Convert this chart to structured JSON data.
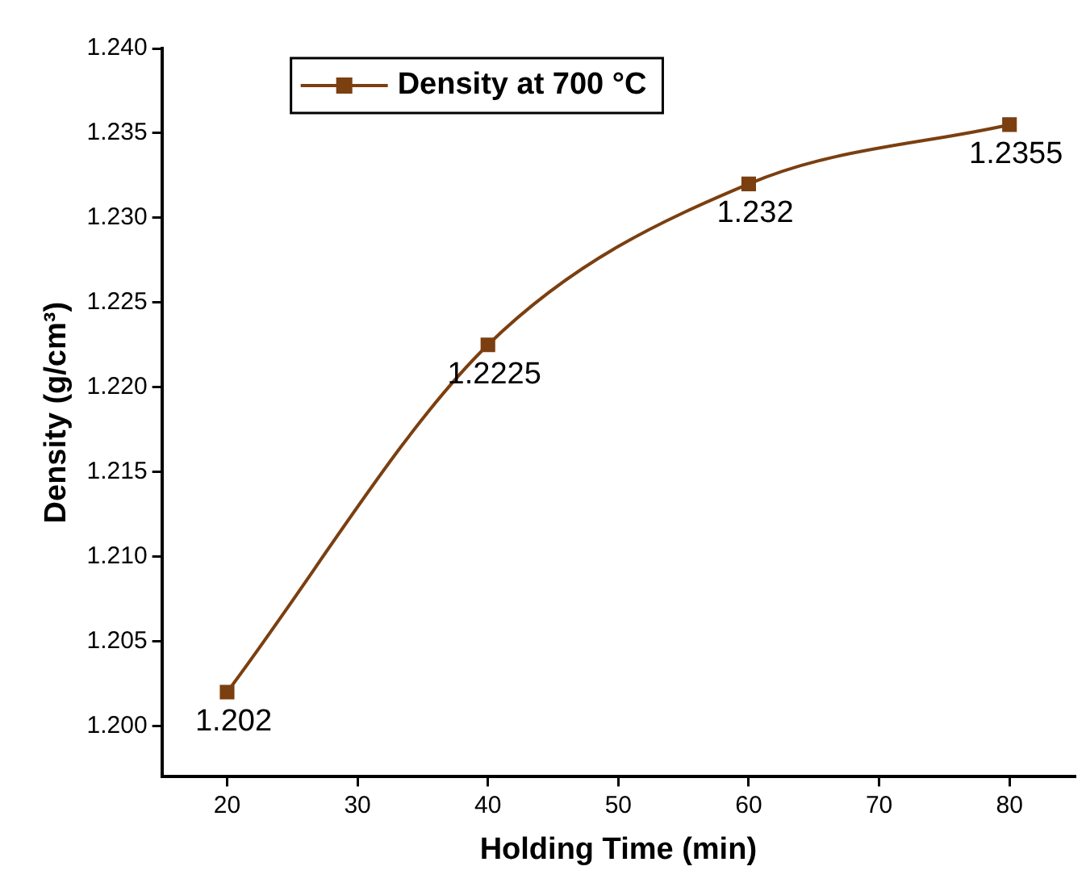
{
  "chart_data": {
    "type": "line",
    "xlabel": "Holding Time (min)",
    "ylabel": "Density (g/cm³)",
    "x": [
      20,
      40,
      60,
      80
    ],
    "series": [
      {
        "name": "Density at 700 °C",
        "color": "#7b3f10",
        "values": [
          1.202,
          1.2225,
          1.232,
          1.2355
        ]
      }
    ],
    "xlim": [
      15,
      85
    ],
    "xticks": [
      20,
      30,
      40,
      50,
      60,
      70,
      80
    ],
    "ylim": [
      1.197,
      1.24
    ],
    "yticks": [
      {
        "value": 1.2,
        "label": "1.200"
      },
      {
        "value": 1.205,
        "label": "1.205"
      },
      {
        "value": 1.21,
        "label": "1.210"
      },
      {
        "value": 1.215,
        "label": "1.215"
      },
      {
        "value": 1.22,
        "label": "1.220"
      },
      {
        "value": 1.225,
        "label": "1.225"
      },
      {
        "value": 1.23,
        "label": "1.230"
      },
      {
        "value": 1.235,
        "label": "1.235"
      },
      {
        "value": 1.24,
        "label": "1.240"
      }
    ],
    "data_labels": true,
    "legend": "top left",
    "marker": "square",
    "line_style": "solid",
    "grid": false
  }
}
